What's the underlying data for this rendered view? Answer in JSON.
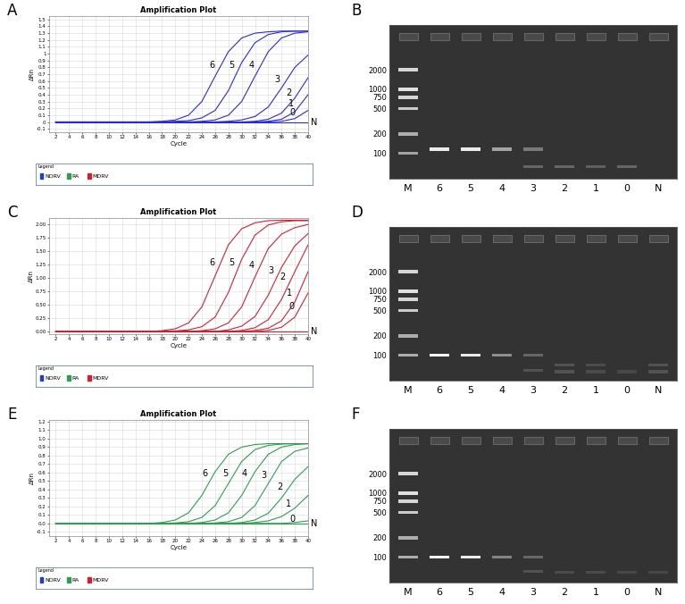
{
  "chart_data": [
    {
      "panel": "A",
      "type": "line",
      "title": "Amplification Plot",
      "x_label": "Cycle",
      "y_label": "ΔRn",
      "x": [
        2,
        4,
        6,
        8,
        10,
        12,
        14,
        16,
        18,
        20,
        22,
        24,
        26,
        28,
        30,
        32,
        34,
        36,
        38,
        40
      ],
      "xlim": [
        1,
        40
      ],
      "xticks": [
        2,
        4,
        6,
        8,
        10,
        12,
        14,
        16,
        18,
        20,
        22,
        24,
        26,
        28,
        30,
        32,
        34,
        36,
        38,
        40
      ],
      "ylim": [
        -0.15,
        1.55
      ],
      "yticks": [
        -0.1,
        0,
        0.1,
        0.2,
        0.3,
        0.4,
        0.5,
        0.6,
        0.7,
        0.8,
        0.9,
        1,
        1.1,
        1.2,
        1.3,
        1.4,
        1.5
      ],
      "grid": true,
      "color": "#2b2bd6",
      "series": [
        {
          "name": "6",
          "values": [
            0,
            0,
            0,
            0,
            0,
            0,
            0,
            0,
            0.01,
            0.03,
            0.1,
            0.3,
            0.67,
            1.03,
            1.23,
            1.3,
            1.32,
            1.33,
            1.33,
            1.33
          ]
        },
        {
          "name": "5",
          "values": [
            0,
            0,
            0,
            0,
            0,
            0,
            0,
            0,
            0,
            0.01,
            0.02,
            0.06,
            0.17,
            0.46,
            0.87,
            1.16,
            1.28,
            1.32,
            1.33,
            1.33
          ]
        },
        {
          "name": "4",
          "values": [
            0,
            0,
            0,
            0,
            0,
            0,
            0,
            0,
            0,
            0,
            0,
            0.01,
            0.03,
            0.1,
            0.3,
            0.67,
            1.03,
            1.23,
            1.3,
            1.32
          ]
        },
        {
          "name": "3",
          "values": [
            0,
            0,
            0,
            0,
            0,
            0,
            0,
            0,
            0,
            0,
            0,
            0,
            0,
            0.01,
            0.03,
            0.08,
            0.22,
            0.5,
            0.8,
            0.98
          ]
        },
        {
          "name": "2",
          "values": [
            0,
            0,
            0,
            0,
            0,
            0,
            0,
            0,
            0,
            0,
            0,
            0,
            0,
            0,
            0,
            0.01,
            0.04,
            0.13,
            0.35,
            0.65
          ]
        },
        {
          "name": "1",
          "values": [
            0,
            0,
            0,
            0,
            0,
            0,
            0,
            0,
            0,
            0,
            0,
            0,
            0,
            0,
            0,
            0,
            0.01,
            0.04,
            0.15,
            0.4
          ]
        },
        {
          "name": "0",
          "values": [
            0,
            0,
            0,
            0,
            0,
            0,
            0,
            0,
            0,
            0,
            0,
            0,
            0,
            0,
            0,
            0,
            0,
            0.01,
            0.05,
            0.17
          ]
        },
        {
          "name": "N",
          "values": [
            0,
            0,
            0,
            0,
            0,
            0,
            0,
            0,
            0,
            0,
            0,
            0,
            0,
            0,
            0,
            0,
            0,
            0,
            0,
            0
          ]
        }
      ],
      "legend_box": {
        "title": "Legend",
        "entries": [
          {
            "name": "NDRV",
            "color": "#1f3fbf"
          },
          {
            "name": "RA",
            "color": "#2e9e4f"
          },
          {
            "name": "MDRV",
            "color": "#cc2233"
          }
        ]
      }
    },
    {
      "panel": "B",
      "type": "gel",
      "categories": [
        "M",
        "6",
        "5",
        "4",
        "3",
        "2",
        "1",
        "0",
        "N"
      ],
      "log": "y",
      "ylim": [
        40,
        10000
      ],
      "yticks": [
        2000,
        1000,
        750,
        500,
        200,
        100
      ],
      "bands": [
        [
          {
            "size": 2000,
            "intensity": 0.8
          },
          {
            "size": 1000,
            "intensity": 0.85
          },
          {
            "size": 750,
            "intensity": 0.8
          },
          {
            "size": 500,
            "intensity": 0.75
          },
          {
            "size": 200,
            "intensity": 0.6
          },
          {
            "size": 100,
            "intensity": 0.55
          }
        ],
        [
          {
            "size": 115,
            "intensity": 0.9
          }
        ],
        [
          {
            "size": 115,
            "intensity": 0.9
          }
        ],
        [
          {
            "size": 115,
            "intensity": 0.55
          }
        ],
        [
          {
            "size": 115,
            "intensity": 0.35
          },
          {
            "size": 62,
            "intensity": 0.25
          }
        ],
        [
          {
            "size": 62,
            "intensity": 0.25
          }
        ],
        [
          {
            "size": 62,
            "intensity": 0.22
          }
        ],
        [
          {
            "size": 62,
            "intensity": 0.25
          }
        ],
        []
      ]
    },
    {
      "panel": "C",
      "type": "line",
      "title": "Amplification Plot",
      "x_label": "Cycle",
      "y_label": "ΔRn",
      "x": [
        2,
        4,
        6,
        8,
        10,
        12,
        14,
        16,
        18,
        20,
        22,
        24,
        26,
        28,
        30,
        32,
        34,
        36,
        38,
        40
      ],
      "xlim": [
        1,
        40
      ],
      "xticks": [
        2,
        4,
        6,
        8,
        10,
        12,
        14,
        16,
        18,
        20,
        22,
        24,
        26,
        28,
        30,
        32,
        34,
        36,
        38,
        40
      ],
      "ylim": [
        -0.05,
        2.12
      ],
      "yticks": [
        {
          "value": 0,
          "label": "0.00"
        },
        0.25,
        {
          "value": 0.5,
          "label": "0.50"
        },
        0.75,
        {
          "value": 1,
          "label": "1.00"
        },
        1.25,
        {
          "value": 1.5,
          "label": "1.50"
        },
        1.75,
        {
          "value": 2,
          "label": "2.00"
        }
      ],
      "grid": true,
      "color": "#cc2233",
      "series": [
        {
          "name": "6",
          "values": [
            0,
            0,
            0,
            0,
            0,
            0,
            0,
            0,
            0.015,
            0.05,
            0.16,
            0.46,
            1.04,
            1.62,
            1.92,
            2.03,
            2.07,
            2.08,
            2.08,
            2.08
          ]
        },
        {
          "name": "5",
          "values": [
            0,
            0,
            0,
            0,
            0,
            0,
            0,
            0,
            0,
            0.01,
            0.03,
            0.09,
            0.27,
            0.73,
            1.35,
            1.8,
            1.99,
            2.05,
            2.07,
            2.07
          ]
        },
        {
          "name": "4",
          "values": [
            0,
            0,
            0,
            0,
            0,
            0,
            0,
            0,
            0,
            0,
            0,
            0.015,
            0.05,
            0.16,
            0.46,
            1.02,
            1.55,
            1.82,
            1.94,
            2.0
          ]
        },
        {
          "name": "3",
          "values": [
            0,
            0,
            0,
            0,
            0,
            0,
            0,
            0,
            0,
            0,
            0,
            0,
            0,
            0.03,
            0.1,
            0.28,
            0.68,
            1.2,
            1.6,
            1.83
          ]
        },
        {
          "name": "2",
          "values": [
            0,
            0,
            0,
            0,
            0,
            0,
            0,
            0,
            0,
            0,
            0,
            0,
            0,
            0,
            0.02,
            0.07,
            0.22,
            0.6,
            1.12,
            1.62
          ]
        },
        {
          "name": "1",
          "values": [
            0,
            0,
            0,
            0,
            0,
            0,
            0,
            0,
            0,
            0,
            0,
            0,
            0,
            0,
            0,
            0.02,
            0.06,
            0.2,
            0.55,
            1.12
          ]
        },
        {
          "name": "0",
          "values": [
            0,
            0,
            0,
            0,
            0,
            0,
            0,
            0,
            0,
            0,
            0,
            0,
            0,
            0,
            0,
            0,
            0.02,
            0.08,
            0.27,
            0.72
          ]
        },
        {
          "name": "N",
          "values": [
            0,
            0,
            0,
            0,
            0,
            0,
            0,
            0,
            0,
            0,
            0,
            0,
            0,
            0,
            0,
            0,
            0,
            0,
            0,
            0
          ]
        }
      ],
      "legend_box": {
        "title": "Legend",
        "entries": [
          {
            "name": "NDRV",
            "color": "#1f3fbf"
          },
          {
            "name": "RA",
            "color": "#2e9e4f"
          },
          {
            "name": "MDRV",
            "color": "#cc2233"
          }
        ]
      }
    },
    {
      "panel": "D",
      "type": "gel",
      "categories": [
        "M",
        "6",
        "5",
        "4",
        "3",
        "2",
        "1",
        "0",
        "N"
      ],
      "log": "y",
      "ylim": [
        40,
        10000
      ],
      "yticks": [
        2000,
        1000,
        750,
        500,
        200,
        100
      ],
      "bands": [
        [
          {
            "size": 2000,
            "intensity": 0.8
          },
          {
            "size": 1000,
            "intensity": 0.85
          },
          {
            "size": 750,
            "intensity": 0.8
          },
          {
            "size": 500,
            "intensity": 0.75
          },
          {
            "size": 200,
            "intensity": 0.6
          },
          {
            "size": 100,
            "intensity": 0.6
          }
        ],
        [
          {
            "size": 100,
            "intensity": 1.0
          }
        ],
        [
          {
            "size": 100,
            "intensity": 0.9
          }
        ],
        [
          {
            "size": 100,
            "intensity": 0.45
          }
        ],
        [
          {
            "size": 100,
            "intensity": 0.25
          },
          {
            "size": 58,
            "intensity": 0.15
          }
        ],
        [
          {
            "size": 70,
            "intensity": 0.15
          },
          {
            "size": 55,
            "intensity": 0.15
          }
        ],
        [
          {
            "size": 70,
            "intensity": 0.12
          },
          {
            "size": 55,
            "intensity": 0.12
          }
        ],
        [
          {
            "size": 55,
            "intensity": 0.1
          }
        ],
        [
          {
            "size": 70,
            "intensity": 0.15
          },
          {
            "size": 55,
            "intensity": 0.15
          }
        ]
      ]
    },
    {
      "panel": "E",
      "type": "line",
      "title": "Amplification Plot",
      "x_label": "Cycle",
      "y_label": "ΔRn",
      "x": [
        2,
        4,
        6,
        8,
        10,
        12,
        14,
        16,
        18,
        20,
        22,
        24,
        26,
        28,
        30,
        32,
        34,
        36,
        38,
        40
      ],
      "xlim": [
        1,
        40
      ],
      "xticks": [
        2,
        4,
        6,
        8,
        10,
        12,
        14,
        16,
        18,
        20,
        22,
        24,
        26,
        28,
        30,
        32,
        34,
        36,
        38,
        40
      ],
      "ylim": [
        -0.15,
        1.22
      ],
      "yticks": [
        -0.1,
        {
          "value": 0,
          "label": "0.0"
        },
        0.1,
        0.2,
        0.3,
        0.4,
        0.5,
        0.6,
        0.7,
        0.8,
        0.9,
        {
          "value": 1,
          "label": "1.0"
        },
        1.1,
        1.2
      ],
      "grid": true,
      "color": "#2e9e4f",
      "series": [
        {
          "name": "6",
          "values": [
            0,
            0,
            0,
            0,
            0,
            0,
            0,
            0,
            0.01,
            0.04,
            0.125,
            0.33,
            0.61,
            0.815,
            0.9,
            0.93,
            0.94,
            0.94,
            0.94,
            0.94
          ]
        },
        {
          "name": "5",
          "values": [
            0,
            0,
            0,
            0,
            0,
            0,
            0,
            0,
            0,
            0.005,
            0.02,
            0.07,
            0.21,
            0.47,
            0.73,
            0.87,
            0.92,
            0.935,
            0.94,
            0.94
          ]
        },
        {
          "name": "4",
          "values": [
            0,
            0,
            0,
            0,
            0,
            0,
            0,
            0,
            0,
            0,
            0,
            0.01,
            0.04,
            0.125,
            0.33,
            0.61,
            0.815,
            0.9,
            0.93,
            0.94
          ]
        },
        {
          "name": "3",
          "values": [
            0,
            0,
            0,
            0,
            0,
            0,
            0,
            0,
            0,
            0,
            0,
            0,
            0.005,
            0.02,
            0.07,
            0.21,
            0.47,
            0.73,
            0.85,
            0.89
          ]
        },
        {
          "name": "2",
          "values": [
            0,
            0,
            0,
            0,
            0,
            0,
            0,
            0,
            0,
            0,
            0,
            0,
            0,
            0,
            0.01,
            0.04,
            0.12,
            0.3,
            0.52,
            0.67
          ]
        },
        {
          "name": "1",
          "values": [
            0,
            0,
            0,
            0,
            0,
            0,
            0,
            0,
            0,
            0,
            0,
            0,
            0,
            0,
            0,
            0.01,
            0.03,
            0.08,
            0.18,
            0.33
          ]
        },
        {
          "name": "0",
          "values": [
            0,
            0,
            0,
            0,
            0,
            0,
            0,
            0,
            0,
            0,
            0,
            0,
            0,
            0,
            0,
            0,
            0,
            0,
            0.01,
            0.03
          ]
        },
        {
          "name": "N",
          "values": [
            0,
            0,
            0,
            0,
            0,
            0,
            0,
            0,
            0,
            0,
            0,
            0,
            0,
            0,
            0,
            0,
            0,
            0,
            0,
            0
          ]
        }
      ],
      "legend_box": {
        "title": "Legend",
        "entries": [
          {
            "name": "NDRV",
            "color": "#1f3fbf"
          },
          {
            "name": "RA",
            "color": "#2e9e4f"
          },
          {
            "name": "MDRV",
            "color": "#cc2233"
          }
        ]
      }
    },
    {
      "panel": "F",
      "type": "gel",
      "categories": [
        "M",
        "6",
        "5",
        "4",
        "3",
        "2",
        "1",
        "0",
        "N"
      ],
      "log": "y",
      "ylim": [
        40,
        10000
      ],
      "yticks": [
        2000,
        1000,
        750,
        500,
        200,
        100
      ],
      "bands": [
        [
          {
            "size": 2000,
            "intensity": 0.8
          },
          {
            "size": 1000,
            "intensity": 0.85
          },
          {
            "size": 750,
            "intensity": 0.8
          },
          {
            "size": 500,
            "intensity": 0.75
          },
          {
            "size": 200,
            "intensity": 0.6
          },
          {
            "size": 100,
            "intensity": 0.6
          }
        ],
        [
          {
            "size": 100,
            "intensity": 0.95
          }
        ],
        [
          {
            "size": 100,
            "intensity": 0.9
          }
        ],
        [
          {
            "size": 100,
            "intensity": 0.4
          }
        ],
        [
          {
            "size": 100,
            "intensity": 0.25
          },
          {
            "size": 60,
            "intensity": 0.15
          }
        ],
        [
          {
            "size": 58,
            "intensity": 0.12
          }
        ],
        [
          {
            "size": 58,
            "intensity": 0.12
          }
        ],
        [
          {
            "size": 58,
            "intensity": 0.1
          }
        ],
        [
          {
            "size": 58,
            "intensity": 0.1
          }
        ]
      ]
    }
  ]
}
